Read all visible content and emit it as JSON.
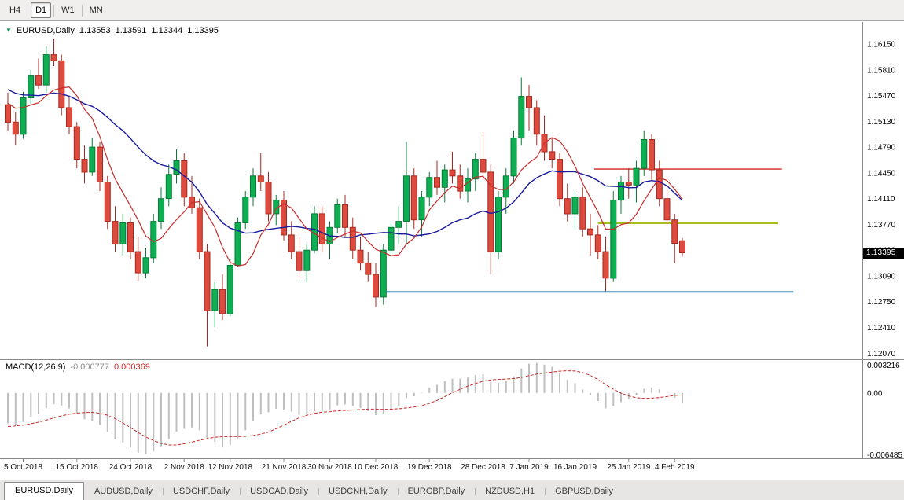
{
  "colors": {
    "up": "#0EAE52",
    "up_border": "#067A36",
    "down": "#DD4B3E",
    "down_border": "#A8281F",
    "ma_fast": "#C62C2C",
    "ma_slow": "#1A1A9E",
    "hline_red": "#D9443F",
    "hline_olive": "#A8BE15",
    "hline_blue": "#3E8EC4",
    "macd_hist": "#BFBFBF",
    "macd_signal": "#C62C2C",
    "badge_bg": "#000000",
    "badge_text": "#FFFFFF"
  },
  "toolbar": {
    "timeframes": [
      {
        "label": "H4",
        "active": false
      },
      {
        "label": "D1",
        "active": true
      },
      {
        "label": "W1",
        "active": false
      },
      {
        "label": "MN",
        "active": false
      }
    ]
  },
  "title": {
    "symbol": "EURUSD,Daily",
    "open": "1.13553",
    "high": "1.13591",
    "low": "1.13344",
    "close": "1.13395"
  },
  "macd_label": {
    "name": "MACD(12,26,9)",
    "main_value": "-0.000777",
    "signal_value": "0.000369"
  },
  "price_axis": {
    "labels": [
      "1.16150",
      "1.15810",
      "1.15470",
      "1.15130",
      "1.14790",
      "1.14450",
      "1.14110",
      "1.13770",
      "1.13430",
      "1.13090",
      "1.12750",
      "1.12410",
      "1.12070"
    ],
    "current": "1.13395"
  },
  "macd_axis": {
    "max_label": "0.003216",
    "zero_label": "0.00",
    "min_label": "-0.006485"
  },
  "time_axis": {
    "ticks": [
      {
        "label": "5 Oct 2018",
        "index": 2
      },
      {
        "label": "15 Oct 2018",
        "index": 9
      },
      {
        "label": "24 Oct 2018",
        "index": 16
      },
      {
        "label": "2 Nov 2018",
        "index": 23
      },
      {
        "label": "12 Nov 2018",
        "index": 29
      },
      {
        "label": "21 Nov 2018",
        "index": 36
      },
      {
        "label": "30 Nov 2018",
        "index": 42
      },
      {
        "label": "10 Dec 2018",
        "index": 48
      },
      {
        "label": "19 Dec 2018",
        "index": 55
      },
      {
        "label": "28 Dec 2018",
        "index": 62
      },
      {
        "label": "7 Jan 2019",
        "index": 68
      },
      {
        "label": "16 Jan 2019",
        "index": 74
      },
      {
        "label": "25 Jan 2019",
        "index": 81
      },
      {
        "label": "4 Feb 2019",
        "index": 87
      }
    ]
  },
  "tabs": [
    {
      "label": "EURUSD,Daily",
      "active": true
    },
    {
      "label": "AUDUSD,Daily",
      "active": false
    },
    {
      "label": "USDCHF,Daily",
      "active": false
    },
    {
      "label": "USDCAD,Daily",
      "active": false
    },
    {
      "label": "USDCNH,Daily",
      "active": false
    },
    {
      "label": "EURGBP,Daily",
      "active": false
    },
    {
      "label": "NZDUSD,H1",
      "active": false
    },
    {
      "label": "GBPUSD,Daily",
      "active": false
    }
  ],
  "chart_data": {
    "type": "candlestick",
    "symbol": "EURUSD",
    "timeframe": "Daily",
    "price_range": [
      1.12,
      1.164
    ],
    "macd_range": [
      -0.006485,
      0.003216
    ],
    "indicators": {
      "ma_fast_period": 7,
      "ma_slow_period": 20,
      "macd": [
        12,
        26,
        9
      ]
    },
    "hlines": [
      {
        "price": 1.145,
        "from_index": 76.5,
        "to_index": 101,
        "color_key": "hline_red",
        "width": 1.6
      },
      {
        "price": 1.1379,
        "from_index": 77,
        "to_index": 100.5,
        "color_key": "hline_olive",
        "width": 3
      },
      {
        "price": 1.1288,
        "from_index": 49,
        "to_index": 102.5,
        "color_key": "hline_blue",
        "width": 2
      }
    ],
    "prehistory_closes": [
      1.1788,
      1.1775,
      1.1762,
      1.175,
      1.1742,
      1.173,
      1.1718,
      1.1706,
      1.1695,
      1.1684,
      1.1672,
      1.166,
      1.165,
      1.164,
      1.163,
      1.1622,
      1.1613,
      1.1605,
      1.1597,
      1.159,
      1.1603,
      1.1596,
      1.1588,
      1.158,
      1.1573,
      1.1566,
      1.156,
      1.1554,
      1.1566,
      1.1558,
      1.1551,
      1.1545,
      1.1556,
      1.1549,
      1.1543,
      1.1538,
      1.1548,
      1.1542,
      1.1536,
      1.154
    ],
    "candles": [
      [
        1.1535,
        1.1551,
        1.1501,
        1.1512
      ],
      [
        1.1512,
        1.1526,
        1.1482,
        1.1496
      ],
      [
        1.1496,
        1.1552,
        1.149,
        1.1544
      ],
      [
        1.1544,
        1.1581,
        1.1536,
        1.1573
      ],
      [
        1.1573,
        1.1596,
        1.1556,
        1.1561
      ],
      [
        1.1561,
        1.1612,
        1.1551,
        1.1601
      ],
      [
        1.1601,
        1.1622,
        1.1586,
        1.1593
      ],
      [
        1.1593,
        1.1601,
        1.1521,
        1.1531
      ],
      [
        1.1531,
        1.1546,
        1.1496,
        1.1506
      ],
      [
        1.1506,
        1.1512,
        1.1451,
        1.1463
      ],
      [
        1.1463,
        1.1481,
        1.1431,
        1.1446
      ],
      [
        1.1446,
        1.1491,
        1.1441,
        1.1479
      ],
      [
        1.1479,
        1.1486,
        1.1421,
        1.1433
      ],
      [
        1.1433,
        1.1441,
        1.1371,
        1.1381
      ],
      [
        1.1381,
        1.1401,
        1.1341,
        1.1351
      ],
      [
        1.1351,
        1.1391,
        1.1336,
        1.1379
      ],
      [
        1.1379,
        1.1386,
        1.1331,
        1.1341
      ],
      [
        1.1341,
        1.1361,
        1.1302,
        1.1313
      ],
      [
        1.1313,
        1.1346,
        1.1306,
        1.1333
      ],
      [
        1.1333,
        1.1391,
        1.1326,
        1.1381
      ],
      [
        1.1381,
        1.1426,
        1.1371,
        1.1411
      ],
      [
        1.1411,
        1.1456,
        1.1401,
        1.1443
      ],
      [
        1.1443,
        1.1476,
        1.1431,
        1.1461
      ],
      [
        1.1461,
        1.1471,
        1.1401,
        1.1413
      ],
      [
        1.1413,
        1.1441,
        1.1391,
        1.1399
      ],
      [
        1.1399,
        1.1411,
        1.1331,
        1.1341
      ],
      [
        1.1341,
        1.1351,
        1.1216,
        1.1263
      ],
      [
        1.1263,
        1.1301,
        1.1241,
        1.1291
      ],
      [
        1.1291,
        1.1311,
        1.1251,
        1.1259
      ],
      [
        1.1259,
        1.1331,
        1.1256,
        1.1323
      ],
      [
        1.1323,
        1.1386,
        1.1321,
        1.1379
      ],
      [
        1.1379,
        1.1421,
        1.1371,
        1.1413
      ],
      [
        1.1413,
        1.1451,
        1.1401,
        1.1441
      ],
      [
        1.1441,
        1.1471,
        1.1421,
        1.1433
      ],
      [
        1.1433,
        1.1446,
        1.1381,
        1.1391
      ],
      [
        1.1391,
        1.1416,
        1.1376,
        1.1409
      ],
      [
        1.1409,
        1.1421,
        1.1356,
        1.1363
      ],
      [
        1.1363,
        1.1381,
        1.1331,
        1.1341
      ],
      [
        1.1341,
        1.1361,
        1.1306,
        1.1316
      ],
      [
        1.1316,
        1.1351,
        1.1301,
        1.1343
      ],
      [
        1.1343,
        1.1401,
        1.1339,
        1.1391
      ],
      [
        1.1391,
        1.1401,
        1.1341,
        1.1351
      ],
      [
        1.1351,
        1.1381,
        1.1331,
        1.1373
      ],
      [
        1.1373,
        1.1411,
        1.1366,
        1.1403
      ],
      [
        1.1403,
        1.1416,
        1.1361,
        1.1373
      ],
      [
        1.1373,
        1.1386,
        1.1331,
        1.1343
      ],
      [
        1.1343,
        1.1361,
        1.1316,
        1.1326
      ],
      [
        1.1326,
        1.1341,
        1.1301,
        1.1311
      ],
      [
        1.1311,
        1.1326,
        1.1268,
        1.1281
      ],
      [
        1.1281,
        1.1351,
        1.1271,
        1.1343
      ],
      [
        1.1343,
        1.1381,
        1.1336,
        1.1373
      ],
      [
        1.1373,
        1.1401,
        1.1351,
        1.1381
      ],
      [
        1.1381,
        1.1486,
        1.1351,
        1.1441
      ],
      [
        1.1441,
        1.1451,
        1.1371,
        1.1383
      ],
      [
        1.1383,
        1.1421,
        1.1361,
        1.1413
      ],
      [
        1.1413,
        1.1446,
        1.1401,
        1.1439
      ],
      [
        1.1439,
        1.1461,
        1.1416,
        1.1426
      ],
      [
        1.1426,
        1.1456,
        1.1406,
        1.1449
      ],
      [
        1.1449,
        1.1473,
        1.1431,
        1.1441
      ],
      [
        1.1441,
        1.1456,
        1.1411,
        1.1421
      ],
      [
        1.1421,
        1.1451,
        1.1406,
        1.1437
      ],
      [
        1.1437,
        1.1471,
        1.1421,
        1.1463
      ],
      [
        1.1463,
        1.1498,
        1.1436,
        1.1446
      ],
      [
        1.1446,
        1.1456,
        1.1311,
        1.1341
      ],
      [
        1.1341,
        1.1421,
        1.1331,
        1.1413
      ],
      [
        1.1413,
        1.1451,
        1.1391,
        1.1441
      ],
      [
        1.1441,
        1.1501,
        1.1431,
        1.1491
      ],
      [
        1.1491,
        1.1571,
        1.1481,
        1.1546
      ],
      [
        1.1546,
        1.1561,
        1.1501,
        1.1531
      ],
      [
        1.1531,
        1.1541,
        1.1481,
        1.1496
      ],
      [
        1.1496,
        1.1521,
        1.1461,
        1.1473
      ],
      [
        1.1473,
        1.1491,
        1.1451,
        1.1463
      ],
      [
        1.1463,
        1.1471,
        1.1401,
        1.1411
      ],
      [
        1.1411,
        1.1431,
        1.1381,
        1.1391
      ],
      [
        1.1391,
        1.1421,
        1.1371,
        1.1413
      ],
      [
        1.1413,
        1.1426,
        1.1361,
        1.1371
      ],
      [
        1.1371,
        1.1391,
        1.1336,
        1.1363
      ],
      [
        1.1363,
        1.1376,
        1.1331,
        1.1341
      ],
      [
        1.1341,
        1.1361,
        1.1289,
        1.1306
      ],
      [
        1.1306,
        1.1421,
        1.1301,
        1.1409
      ],
      [
        1.1409,
        1.1441,
        1.1391,
        1.1433
      ],
      [
        1.1433,
        1.1451,
        1.1411,
        1.1429
      ],
      [
        1.1429,
        1.1461,
        1.1406,
        1.1451
      ],
      [
        1.1451,
        1.1501,
        1.1441,
        1.1489
      ],
      [
        1.1489,
        1.1496,
        1.1436,
        1.1449
      ],
      [
        1.1449,
        1.1461,
        1.1401,
        1.1411
      ],
      [
        1.1411,
        1.1426,
        1.1376,
        1.1383
      ],
      [
        1.1383,
        1.1391,
        1.1326,
        1.1352
      ],
      [
        1.13553,
        1.13591,
        1.13344,
        1.13395
      ]
    ]
  }
}
